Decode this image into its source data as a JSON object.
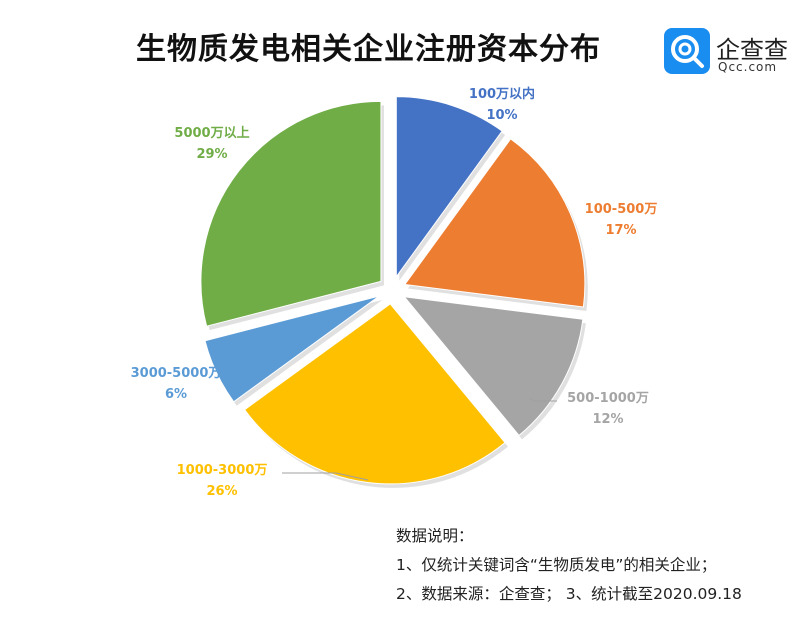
{
  "header": {
    "title": "生物质发电相关企业注册资本分布"
  },
  "logo": {
    "name": "企查查",
    "domain": "Qcc.com",
    "icon": "qcc-logo-icon"
  },
  "chart_data": {
    "type": "pie",
    "title": "生物质发电相关企业注册资本分布",
    "slices": [
      {
        "label": "100万以内",
        "value": 10,
        "value_label": "10%",
        "color": "#4472c4"
      },
      {
        "label": "100-500万",
        "value": 17,
        "value_label": "17%",
        "color": "#ed7d31"
      },
      {
        "label": "500-1000万",
        "value": 12,
        "value_label": "12%",
        "color": "#a5a5a5"
      },
      {
        "label": "1000-3000万",
        "value": 26,
        "value_label": "26%",
        "color": "#ffc000"
      },
      {
        "label": "3000-5000万",
        "value": 6,
        "value_label": "6%",
        "color": "#5b9bd5"
      },
      {
        "label": "5000万以上",
        "value": 29,
        "value_label": "29%",
        "color": "#70ad47"
      }
    ],
    "start": "12 o'clock",
    "direction": "clockwise",
    "exploded": true,
    "legend": "none"
  },
  "notes": {
    "heading": "数据说明：",
    "line1": "1、仅统计关键词含“生物质发电”的相关企业；",
    "line2": "2、数据来源：企查查； 3、统计截至2020.09.18"
  }
}
